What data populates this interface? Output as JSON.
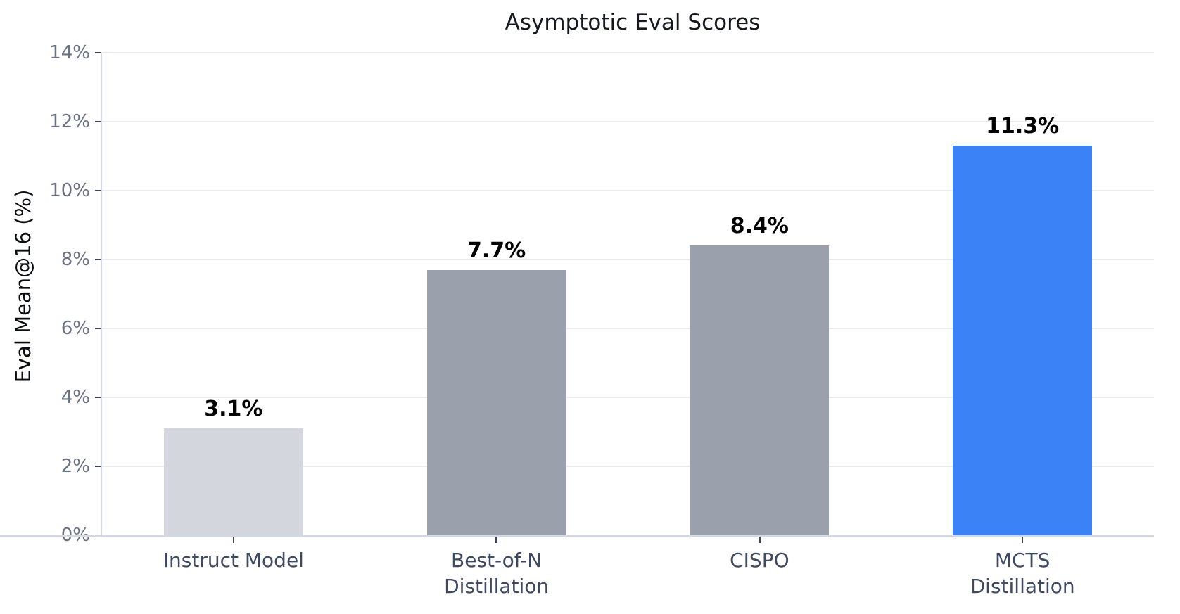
{
  "chart_data": {
    "type": "bar",
    "title": "Asymptotic Eval Scores",
    "xlabel": "",
    "ylabel": "Eval Mean@16 (%)",
    "categories": [
      "Instruct Model",
      "Best-of-N\nDistillation",
      "CISPO",
      "MCTS\nDistillation"
    ],
    "values": [
      3.1,
      7.7,
      8.4,
      11.3
    ],
    "bar_value_labels": [
      "3.1%",
      "7.7%",
      "8.4%",
      "11.3%"
    ],
    "bar_colors": [
      "#d3d6dd",
      "#9ba1ac",
      "#9ba1ac",
      "#3b82f6"
    ],
    "ylim": [
      0,
      14
    ],
    "ytick_step": 2,
    "ytick_labels": [
      "0%",
      "2%",
      "4%",
      "6%",
      "8%",
      "10%",
      "12%",
      "14%"
    ],
    "grid": true,
    "legend_position": "none"
  },
  "colors": {
    "background": "#ffffff",
    "highlight_bar": "#3b82f6",
    "default_bar": "#9ba1ac",
    "muted_bar": "#d3d6dd",
    "gridline": "#e9ebf0",
    "axis_line": "#d4d8e1",
    "tick_mark": "#3f4757",
    "y_tick_text": "#6a7383",
    "x_tick_text": "#3e4a61",
    "title_text": "#16181d",
    "value_label_text": "#000000"
  }
}
